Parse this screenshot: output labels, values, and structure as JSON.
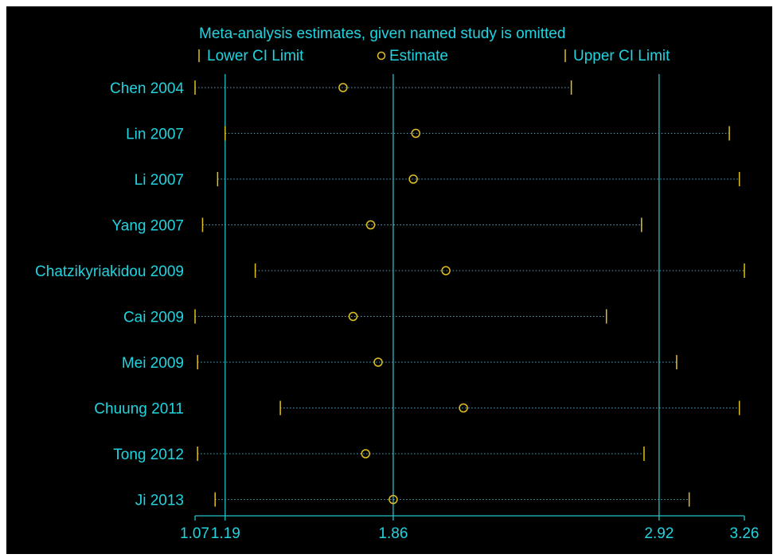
{
  "chart_data": {
    "type": "scatter",
    "title": "Meta-analysis estimates, given named study is omitted",
    "legend": [
      {
        "key": "lower",
        "label": "Lower CI Limit",
        "symbol": "tick"
      },
      {
        "key": "estimate",
        "label": "Estimate",
        "symbol": "circle"
      },
      {
        "key": "upper",
        "label": "Upper CI Limit",
        "symbol": "tick"
      }
    ],
    "legend_position": "top",
    "x_axis": {
      "tick_labels": [
        "1.07",
        "1.19",
        "1.86",
        "2.92",
        "3.26"
      ],
      "ticks": [
        1.07,
        1.19,
        1.86,
        2.92,
        3.26
      ],
      "reference_lines": [
        1.19,
        1.86,
        2.92
      ],
      "xlim": [
        1.07,
        3.26
      ]
    },
    "studies": [
      {
        "name": "Chen 2004",
        "lower": 1.07,
        "estimate": 1.66,
        "upper": 2.57
      },
      {
        "name": "Lin 2007",
        "lower": 1.19,
        "estimate": 1.95,
        "upper": 3.2
      },
      {
        "name": "Li 2007",
        "lower": 1.16,
        "estimate": 1.94,
        "upper": 3.24
      },
      {
        "name": "Yang 2007",
        "lower": 1.1,
        "estimate": 1.77,
        "upper": 2.85
      },
      {
        "name": "Chatzikyriakidou 2009",
        "lower": 1.31,
        "estimate": 2.07,
        "upper": 3.26
      },
      {
        "name": "Cai 2009",
        "lower": 1.07,
        "estimate": 1.7,
        "upper": 2.71
      },
      {
        "name": "Mei 2009",
        "lower": 1.08,
        "estimate": 1.8,
        "upper": 2.99
      },
      {
        "name": "Chuung 2011",
        "lower": 1.41,
        "estimate": 2.14,
        "upper": 3.24
      },
      {
        "name": "Tong 2012",
        "lower": 1.08,
        "estimate": 1.75,
        "upper": 2.86
      },
      {
        "name": "Ji 2013",
        "lower": 1.15,
        "estimate": 1.86,
        "upper": 3.04
      }
    ],
    "colors": {
      "background": "#000000",
      "frame": "#ffffff",
      "text": "#22d3e0",
      "reference_line": "#22c0c8",
      "marker": "#e0c020",
      "dotted_line": "#4aa8c8"
    },
    "grid": false
  }
}
